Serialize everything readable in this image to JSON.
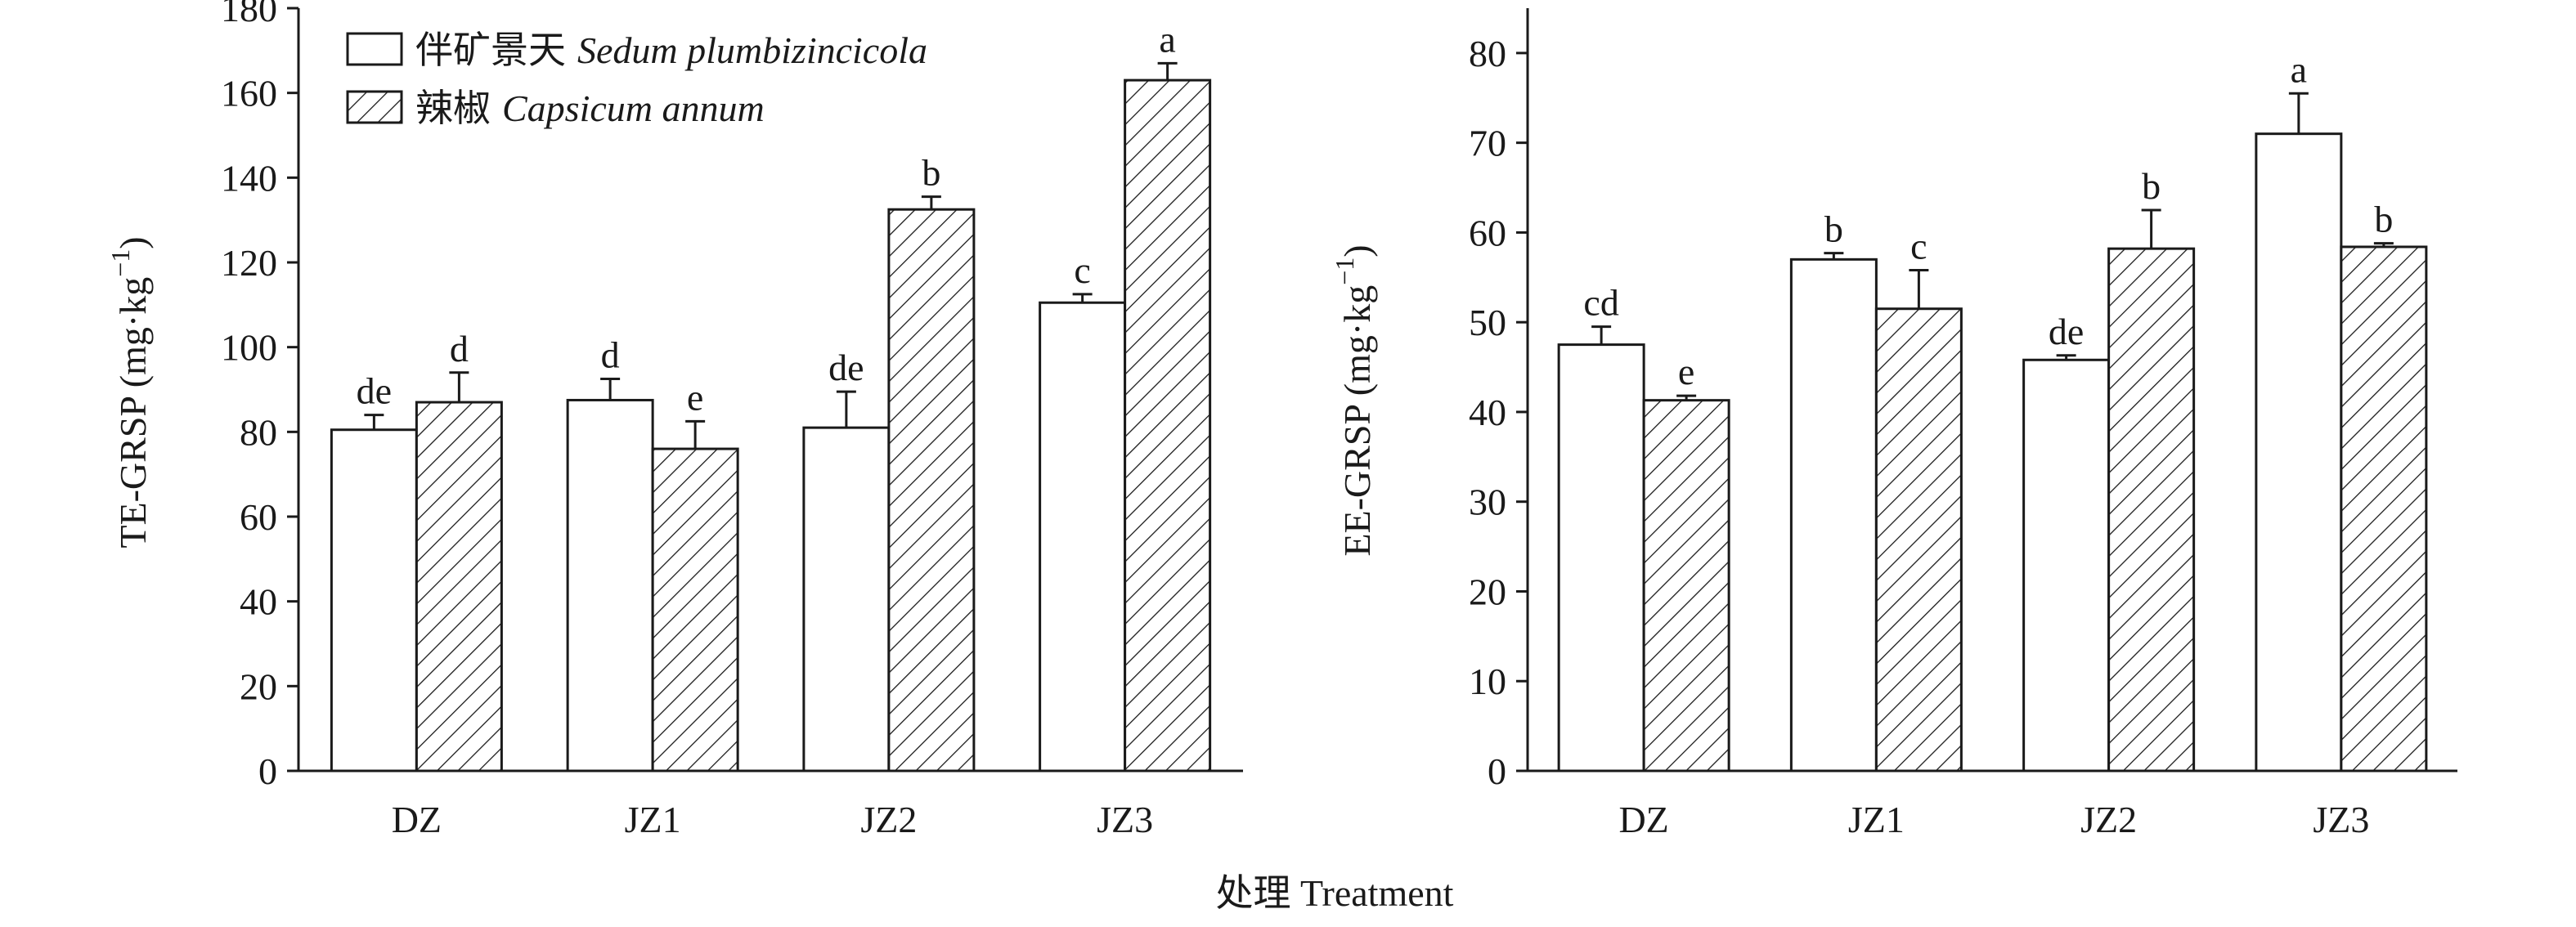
{
  "xlabel": "处理 Treatment",
  "legend": [
    {
      "cn": "伴矿景天",
      "sci": "Sedum plumbizincicola",
      "pattern": "open"
    },
    {
      "cn": "辣椒",
      "sci": "Capsicum annum",
      "pattern": "hatched"
    }
  ],
  "chart_data": [
    {
      "type": "bar",
      "ylabel": "TE-GRSP (mg·kg⁻¹)",
      "ylim": [
        0,
        180
      ],
      "yticks": [
        0,
        20,
        40,
        60,
        80,
        100,
        120,
        140,
        160,
        180
      ],
      "categories": [
        "DZ",
        "JZ1",
        "JZ2",
        "JZ3"
      ],
      "series": [
        {
          "name": "伴矿景天 Sedum plumbizincicola",
          "pattern": "open",
          "values": [
            80.5,
            87.5,
            81.0,
            110.5
          ],
          "errors": [
            3.5,
            5.0,
            8.5,
            2.0
          ],
          "letters": [
            "de",
            "d",
            "de",
            "c"
          ]
        },
        {
          "name": "辣椒 Capsicum annum",
          "pattern": "hatched",
          "values": [
            87.0,
            76.0,
            132.5,
            163.0
          ],
          "errors": [
            7.0,
            6.5,
            3.0,
            4.0
          ],
          "letters": [
            "d",
            "e",
            "b",
            "a"
          ]
        }
      ]
    },
    {
      "type": "bar",
      "ylabel": "EE-GRSP (mg·kg⁻¹)",
      "ylim": [
        0,
        85
      ],
      "yticks": [
        0,
        10,
        20,
        30,
        40,
        50,
        60,
        70,
        80
      ],
      "categories": [
        "DZ",
        "JZ1",
        "JZ2",
        "JZ3"
      ],
      "series": [
        {
          "name": "伴矿景天 Sedum plumbizincicola",
          "pattern": "open",
          "values": [
            47.5,
            57.0,
            45.8,
            71.0
          ],
          "errors": [
            2.0,
            0.7,
            0.5,
            4.5
          ],
          "letters": [
            "cd",
            "b",
            "de",
            "a"
          ]
        },
        {
          "name": "辣椒 Capsicum annum",
          "pattern": "hatched",
          "values": [
            41.3,
            51.5,
            58.2,
            58.4
          ],
          "errors": [
            0.5,
            4.3,
            4.3,
            0.4
          ],
          "letters": [
            "e",
            "c",
            "b",
            "b"
          ]
        }
      ]
    }
  ]
}
